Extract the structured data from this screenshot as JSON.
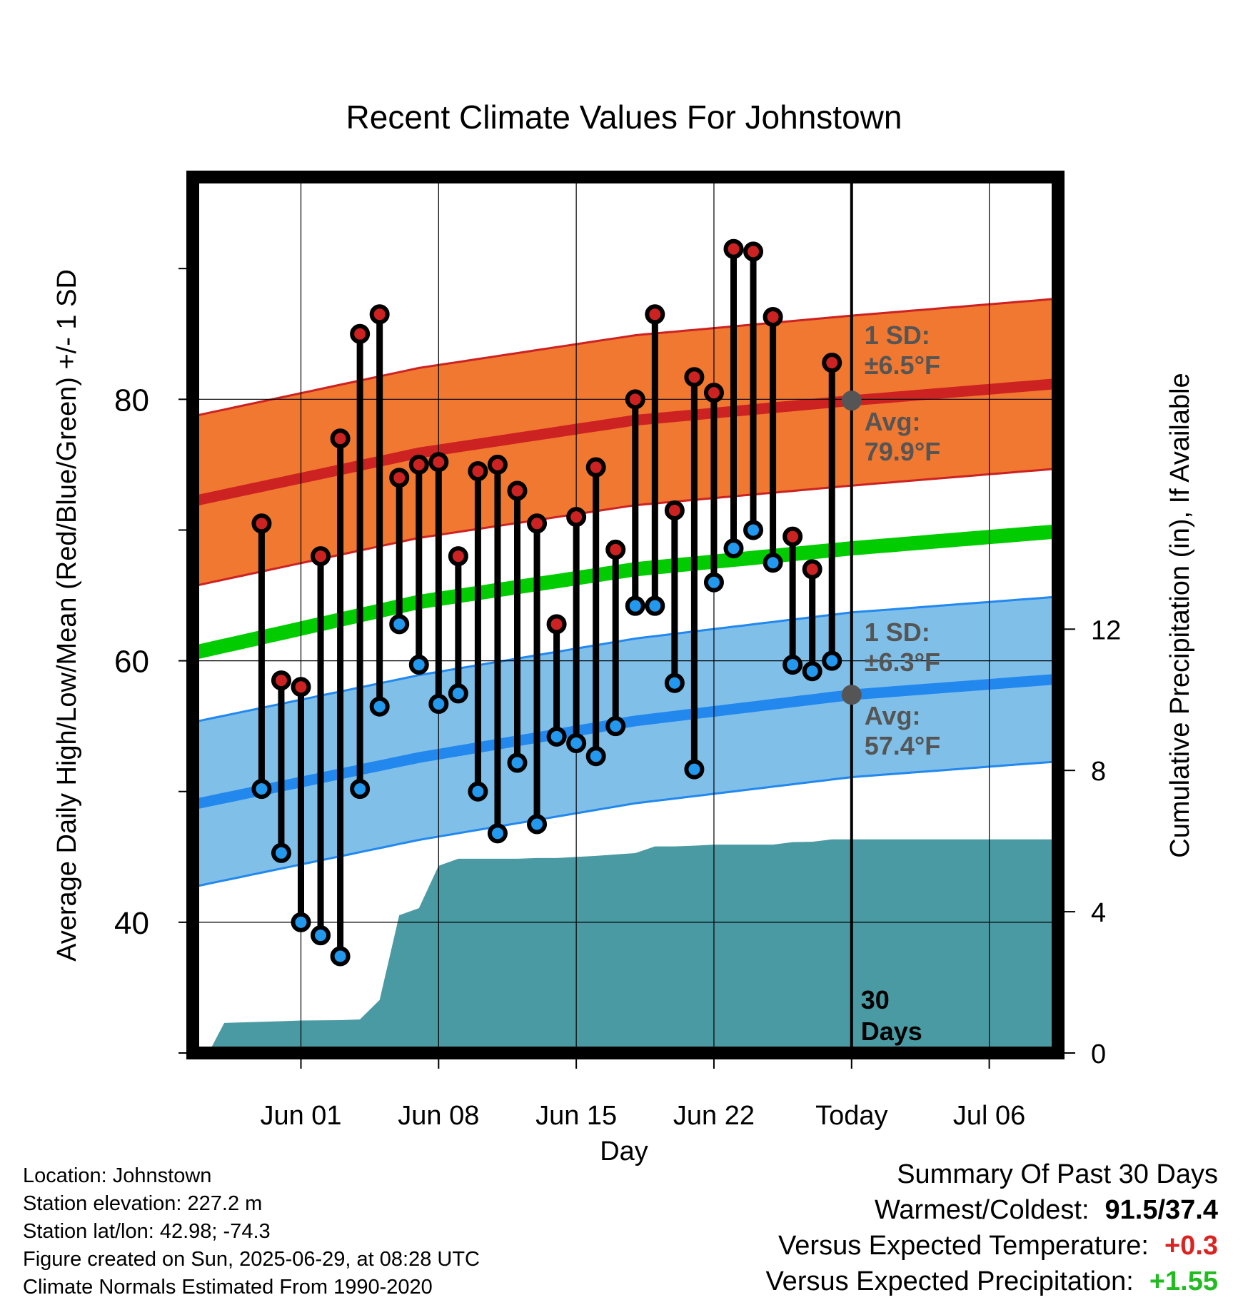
{
  "title": "Recent Climate Values For Johnstown",
  "ylabel_left": "Average Daily High/Low/Mean (Red/Blue/Green) +/- 1 SD",
  "ylabel_right": "Cumulative Precipitation (in), If Available",
  "xlabel": "Day",
  "colors": {
    "high_band": "#f07830",
    "high_line": "#cc2222",
    "low_band": "#80c0e8",
    "low_line": "#2288ee",
    "mean_line": "#00cc00",
    "precip_fill": "#4a9aa4",
    "high_marker": "#cc2222",
    "low_marker": "#2299ee",
    "annotation_text": "#555555",
    "warm_value": "#dd2222",
    "wet_value": "#22bb22"
  },
  "annotations": {
    "high_sd": [
      "1 SD:",
      "±6.5°F"
    ],
    "high_avg": [
      "Avg:",
      "79.9°F"
    ],
    "low_sd": [
      "1 SD:",
      "±6.3°F"
    ],
    "low_avg": [
      "Avg:",
      "57.4°F"
    ],
    "today_days": [
      "30",
      "Days"
    ]
  },
  "footer_left": {
    "location": "Location: Johnstown",
    "elevation": "Station elevation: 227.2 m",
    "latlon": "Station lat/lon: 42.98; -74.3",
    "created": "Figure created on Sun, 2025-06-29, at 08:28 UTC",
    "normals": "Climate Normals Estimated From 1990-2020"
  },
  "summary": {
    "heading": "Summary Of Past 30 Days",
    "warm_cold_label": "Warmest/Coldest:",
    "warm_cold_value": "91.5/37.4",
    "temp_label": "Versus Expected Temperature:",
    "temp_value": "+0.3",
    "precip_label": "Versus Expected Precipitation:",
    "precip_value": "+1.55"
  },
  "chart_data": {
    "type": "line",
    "x_axis": {
      "range_days": [
        -33.5,
        10.5
      ],
      "ticks": [
        {
          "day": -28,
          "label": "Jun 01"
        },
        {
          "day": -21,
          "label": "Jun 08"
        },
        {
          "day": -14,
          "label": "Jun 15"
        },
        {
          "day": -7,
          "label": "Jun 22"
        },
        {
          "day": 0,
          "label": "Today"
        },
        {
          "day": 7,
          "label": "Jul 06"
        }
      ]
    },
    "y_left": {
      "range": [
        30,
        97
      ],
      "major_ticks": [
        40,
        60,
        80
      ],
      "minor_ticks": [
        30,
        50,
        70,
        90
      ]
    },
    "y_right": {
      "range": [
        0,
        24.8
      ],
      "ticks": [
        0,
        4,
        8,
        12
      ]
    },
    "grid": true,
    "today_day": 0,
    "days_to_today": [
      -30,
      -29,
      -28,
      -27,
      -26,
      -25,
      -24,
      -23,
      -22,
      -21,
      -20,
      -19,
      -18,
      -17,
      -16,
      -15,
      -14,
      -13,
      -12,
      -11,
      -10,
      -9,
      -8,
      -7,
      -6,
      -5,
      -4,
      -3,
      -2,
      -1
    ],
    "dates": [
      "Jul 06",
      "Jun 22",
      "Jun 15",
      "Jun 08",
      "Jun 01",
      "Today"
    ],
    "observed_high": [
      70.5,
      58.5,
      58.0,
      68.0,
      77.0,
      85.0,
      86.5,
      74.0,
      75.0,
      75.2,
      68.0,
      74.5,
      75.0,
      73.0,
      70.5,
      62.8,
      71.0,
      74.8,
      68.5,
      80.0,
      86.5,
      71.5,
      81.7,
      80.5,
      91.5,
      91.3,
      86.3,
      69.5,
      67.0,
      82.8
    ],
    "observed_low": [
      50.2,
      45.3,
      40.0,
      39.0,
      37.4,
      50.2,
      56.5,
      62.8,
      59.7,
      56.7,
      57.5,
      50.0,
      46.8,
      52.2,
      47.5,
      54.2,
      53.7,
      52.7,
      55.0,
      64.2,
      64.2,
      58.3,
      51.7,
      66.0,
      68.6,
      70.0,
      67.5,
      59.7,
      59.2,
      60.0
    ],
    "normals_days": [
      -33.5,
      -22,
      -11,
      0,
      10.5
    ],
    "normal_high": [
      72.2,
      75.9,
      78.4,
      79.9,
      81.2
    ],
    "normal_high_sd": 6.5,
    "normal_low": [
      49.0,
      52.6,
      55.4,
      57.4,
      58.6
    ],
    "normal_low_sd": 6.3,
    "normal_mean": [
      60.6,
      64.5,
      67.0,
      68.6,
      69.9
    ],
    "cumulative_precip_days": [
      -32.7,
      -31.9,
      -29.0,
      -28.0,
      -26.0,
      -25.0,
      -24.0,
      -23.0,
      -22.0,
      -21.0,
      -20.0,
      -19.0,
      -18.0,
      -17.0,
      -16.0,
      -15.0,
      -14.0,
      -13.0,
      -12.0,
      -11.0,
      -10.0,
      -9.0,
      -8.0,
      -7.0,
      -6.0,
      -5.0,
      -4.0,
      -3.0,
      -2.0,
      -1.0,
      0.0,
      10.5
    ],
    "cumulative_precip": [
      0.0,
      0.85,
      0.9,
      0.92,
      0.93,
      0.95,
      1.5,
      3.9,
      4.1,
      5.3,
      5.5,
      5.5,
      5.5,
      5.5,
      5.52,
      5.52,
      5.55,
      5.58,
      5.62,
      5.66,
      5.85,
      5.85,
      5.87,
      5.9,
      5.9,
      5.9,
      5.9,
      5.97,
      5.98,
      6.05,
      6.05,
      6.05
    ]
  }
}
